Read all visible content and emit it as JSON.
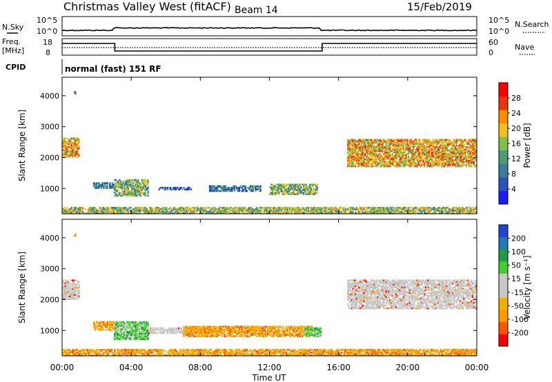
{
  "header": {
    "station": "Christmas Valley West (fitACF)",
    "beam": "Beam 14",
    "date": "15/Feb/2019"
  },
  "noise_panel": {
    "left_label": "N.Sky",
    "right_label": "N.Search",
    "left_ticks": [
      "10^5",
      "10^0"
    ],
    "right_ticks": [
      "10^5",
      "10^0"
    ]
  },
  "freq_panel": {
    "left_label_1": "Freq.",
    "left_label_2": "[MHz]",
    "right_label": "Nave",
    "left_ticks": [
      "18",
      "8"
    ],
    "right_ticks": [
      "60",
      "0"
    ]
  },
  "cpid": {
    "label": "CPID",
    "value": "normal (fast) 151 RF"
  },
  "colors": {
    "power_scale": [
      "#1a1aff",
      "#2a54b8",
      "#3a7a9a",
      "#4b9a78",
      "#7fbf4a",
      "#f0c020",
      "#ff8c00",
      "#ee3311",
      "#ff0000"
    ],
    "velocity_scale": [
      "#ff0000",
      "#ff5500",
      "#ff9900",
      "#f0b000",
      "#c8c8c8",
      "#c8c8c8",
      "#44cc33",
      "#229944",
      "#2277bb",
      "#2244cc"
    ],
    "ground": "#c8c8c8"
  },
  "chart_data": [
    {
      "type": "heatmap",
      "panel": "power",
      "ylabel": "Slant Range [km]",
      "xlabel": "Time UT",
      "x_ticks": [
        "00:00",
        "04:00",
        "08:00",
        "12:00",
        "16:00",
        "20:00",
        "00:00"
      ],
      "y_ticks": [
        1000,
        2000,
        3000,
        4000
      ],
      "ylim": [
        180,
        4600
      ],
      "xlim_hours": [
        0,
        24
      ],
      "colorbar": {
        "label": "Power [dB]",
        "ticks": [
          4,
          8,
          12,
          16,
          20,
          24,
          28
        ],
        "range": [
          0,
          32
        ]
      },
      "regions": [
        {
          "t0": 0.0,
          "t1": 1.0,
          "r0": 2000,
          "r1": 2650,
          "level": 0.65
        },
        {
          "t0": 0.7,
          "t1": 0.8,
          "r0": 4050,
          "r1": 4150,
          "level": 0.25
        },
        {
          "t0": 1.8,
          "t1": 3.0,
          "r0": 1000,
          "r1": 1200,
          "level": 0.25
        },
        {
          "t0": 3.0,
          "t1": 5.0,
          "r0": 750,
          "r1": 1300,
          "level": 0.45
        },
        {
          "t0": 5.5,
          "t1": 7.5,
          "r0": 950,
          "r1": 1050,
          "level": 0.25
        },
        {
          "t0": 8.5,
          "t1": 11.5,
          "r0": 900,
          "r1": 1100,
          "level": 0.25
        },
        {
          "t0": 12.0,
          "t1": 14.8,
          "r0": 800,
          "r1": 1150,
          "level": 0.45
        },
        {
          "t0": 16.5,
          "t1": 24.0,
          "r0": 1700,
          "r1": 2600,
          "level": 0.65
        },
        {
          "t0": 0.0,
          "t1": 24.0,
          "r0": 180,
          "r1": 400,
          "level": 0.5
        }
      ]
    },
    {
      "type": "heatmap",
      "panel": "velocity",
      "ylabel": "Slant Range [km]",
      "xlabel": "Time UT",
      "x_ticks": [
        "00:00",
        "04:00",
        "08:00",
        "12:00",
        "16:00",
        "20:00",
        "00:00"
      ],
      "y_ticks": [
        1000,
        2000,
        3000,
        4000
      ],
      "ylim": [
        180,
        4600
      ],
      "xlim_hours": [
        0,
        24
      ],
      "colorbar": {
        "label": "Velocity [m s⁻¹]",
        "ticks": [
          200,
          100,
          50,
          15,
          -15,
          -50,
          -100,
          -200
        ]
      },
      "regions": [
        {
          "t0": 0.0,
          "t1": 1.0,
          "r0": 2000,
          "r1": 2650,
          "kind": "ground"
        },
        {
          "t0": 0.7,
          "t1": 0.8,
          "r0": 4050,
          "r1": 4150,
          "kind": "negative"
        },
        {
          "t0": 1.8,
          "t1": 3.2,
          "r0": 1000,
          "r1": 1300,
          "kind": "negative"
        },
        {
          "t0": 3.0,
          "t1": 5.0,
          "r0": 700,
          "r1": 1300,
          "kind": "positive"
        },
        {
          "t0": 5.0,
          "t1": 7.5,
          "r0": 900,
          "r1": 1100,
          "kind": "ground"
        },
        {
          "t0": 7.0,
          "t1": 14.5,
          "r0": 800,
          "r1": 1150,
          "kind": "negative"
        },
        {
          "t0": 14.0,
          "t1": 15.0,
          "r0": 800,
          "r1": 1100,
          "kind": "positive"
        },
        {
          "t0": 16.5,
          "t1": 24.0,
          "r0": 1700,
          "r1": 2650,
          "kind": "ground"
        },
        {
          "t0": 0.0,
          "t1": 24.0,
          "r0": 180,
          "r1": 400,
          "kind": "negative"
        }
      ]
    }
  ]
}
